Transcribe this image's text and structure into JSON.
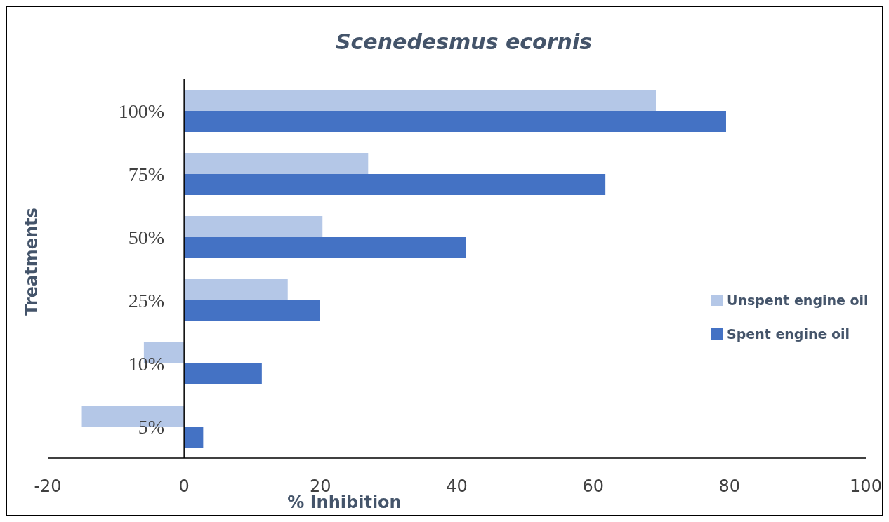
{
  "chart_data": {
    "type": "bar",
    "orientation": "horizontal",
    "title": "Scenedesmus ecornis",
    "xlabel": "% Inhibition",
    "ylabel": "Treatments",
    "categories": [
      "100%",
      "75%",
      "50%",
      "25%",
      "10%",
      "5%"
    ],
    "series": [
      {
        "name": "Unspent engine oil",
        "color": "#b4c7e7",
        "values": [
          69.2,
          27.0,
          20.3,
          15.2,
          -5.9,
          -15.0
        ]
      },
      {
        "name": "Spent engine oil",
        "color": "#4472c4",
        "values": [
          79.5,
          61.8,
          41.3,
          19.9,
          11.4,
          2.8
        ]
      }
    ],
    "xlim": [
      -20,
      100
    ],
    "xticks": [
      -20,
      0,
      20,
      40,
      60,
      80,
      100
    ],
    "grid": false,
    "legend": "right"
  }
}
